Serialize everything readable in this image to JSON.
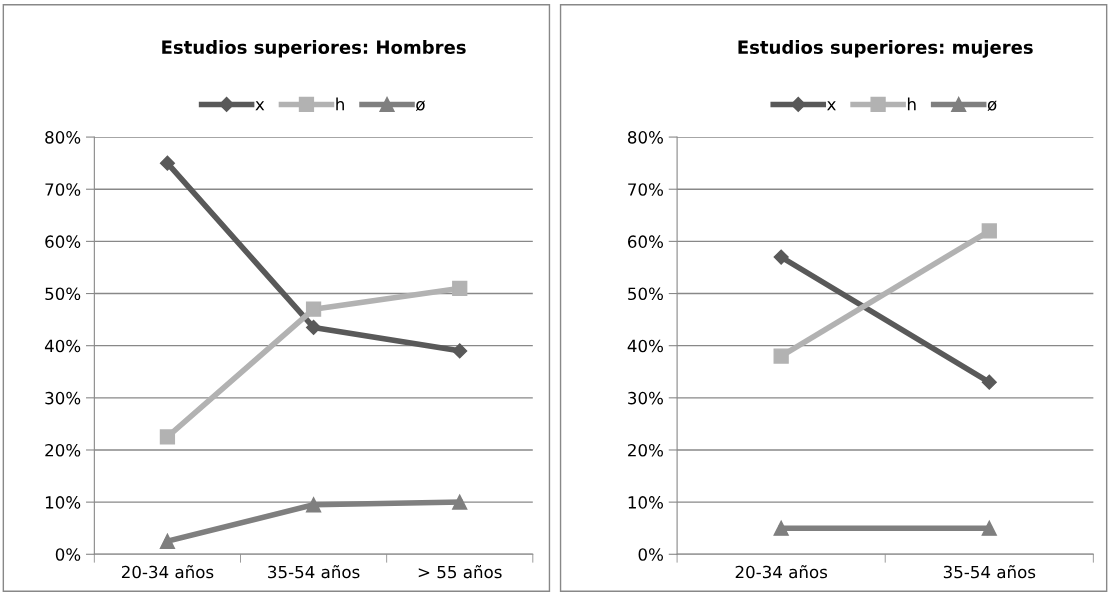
{
  "chart_data": [
    {
      "type": "line",
      "title": "Estudios superiores: Hombres",
      "categories": [
        "20-34 años",
        "35-54 años",
        "> 55 años"
      ],
      "series": [
        {
          "name": "x",
          "color": "#595959",
          "marker": "diamond",
          "values": [
            75,
            43.5,
            39
          ]
        },
        {
          "name": "h",
          "color": "#b2b2b2",
          "marker": "square",
          "values": [
            22.5,
            47,
            51
          ]
        },
        {
          "name": "ø",
          "color": "#7f7f7f",
          "marker": "triangle",
          "values": [
            2.5,
            9.5,
            10
          ]
        }
      ],
      "ylim": [
        0,
        80
      ],
      "yticks": [
        {
          "value": 0,
          "label": "0%"
        },
        {
          "value": 10,
          "label": "10%"
        },
        {
          "value": 20,
          "label": "20%"
        },
        {
          "value": 30,
          "label": "30%"
        },
        {
          "value": 40,
          "label": "40%"
        },
        {
          "value": 50,
          "label": "50%"
        },
        {
          "value": 60,
          "label": "60%"
        },
        {
          "value": 70,
          "label": "70%"
        },
        {
          "value": 80,
          "label": "80%"
        }
      ],
      "grid": "y",
      "legend": "top"
    },
    {
      "type": "line",
      "title": "Estudios superiores: mujeres",
      "categories": [
        "20-34 años",
        "35-54 años"
      ],
      "series": [
        {
          "name": "x",
          "color": "#595959",
          "marker": "diamond",
          "values": [
            57,
            33
          ]
        },
        {
          "name": "h",
          "color": "#b2b2b2",
          "marker": "square",
          "values": [
            38,
            62
          ]
        },
        {
          "name": "ø",
          "color": "#7f7f7f",
          "marker": "triangle",
          "values": [
            5,
            5
          ]
        }
      ],
      "ylim": [
        0,
        80
      ],
      "yticks": [
        {
          "value": 0,
          "label": "0%"
        },
        {
          "value": 10,
          "label": "10%"
        },
        {
          "value": 20,
          "label": "20%"
        },
        {
          "value": 30,
          "label": "30%"
        },
        {
          "value": 40,
          "label": "40%"
        },
        {
          "value": 50,
          "label": "50%"
        },
        {
          "value": 60,
          "label": "60%"
        },
        {
          "value": 70,
          "label": "70%"
        },
        {
          "value": 80,
          "label": "80%"
        }
      ],
      "grid": "y",
      "legend": "top"
    }
  ]
}
